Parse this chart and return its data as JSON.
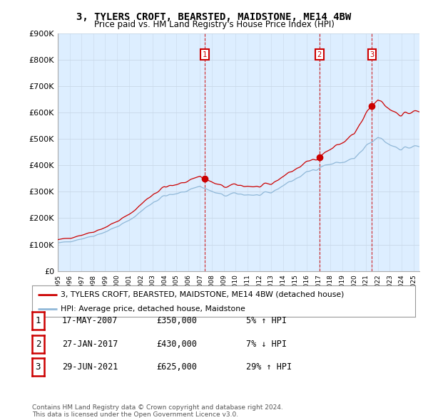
{
  "title": "3, TYLERS CROFT, BEARSTED, MAIDSTONE, ME14 4BW",
  "subtitle": "Price paid vs. HM Land Registry's House Price Index (HPI)",
  "ylim": [
    0,
    900000
  ],
  "yticks": [
    0,
    100000,
    200000,
    300000,
    400000,
    500000,
    600000,
    700000,
    800000,
    900000
  ],
  "ytick_labels": [
    "£0",
    "£100K",
    "£200K",
    "£300K",
    "£400K",
    "£500K",
    "£600K",
    "£700K",
    "£800K",
    "£900K"
  ],
  "sale_color": "#cc0000",
  "hpi_color": "#90b8d8",
  "vline_color": "#cc0000",
  "chart_bg": "#ddeeff",
  "purchase_dates": [
    2007.38,
    2017.07,
    2021.49
  ],
  "purchase_prices": [
    350000,
    430000,
    625000
  ],
  "purchase_labels": [
    "1",
    "2",
    "3"
  ],
  "table_rows": [
    {
      "num": "1",
      "date": "17-MAY-2007",
      "price": "£350,000",
      "change": "5% ↑ HPI"
    },
    {
      "num": "2",
      "date": "27-JAN-2017",
      "price": "£430,000",
      "change": "7% ↓ HPI"
    },
    {
      "num": "3",
      "date": "29-JUN-2021",
      "price": "£625,000",
      "change": "29% ↑ HPI"
    }
  ],
  "footer": "Contains HM Land Registry data © Crown copyright and database right 2024.\nThis data is licensed under the Open Government Licence v3.0.",
  "legend_sale": "3, TYLERS CROFT, BEARSTED, MAIDSTONE, ME14 4BW (detached house)",
  "legend_hpi": "HPI: Average price, detached house, Maidstone",
  "background_color": "#ffffff"
}
